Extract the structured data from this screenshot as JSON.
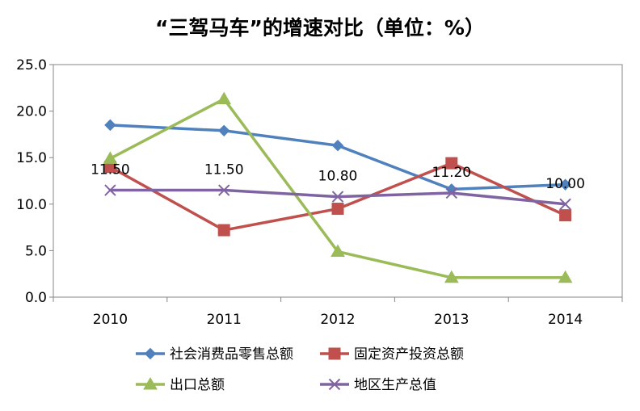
{
  "chart_data": {
    "type": "line",
    "title": "“三驾马车”的增速对比（单位：%）",
    "categories": [
      "2010",
      "2011",
      "2012",
      "2013",
      "2014"
    ],
    "ylim": [
      0,
      25
    ],
    "yticks": [
      "0.0",
      "5.0",
      "10.0",
      "15.0",
      "20.0",
      "25.0"
    ],
    "grid": false,
    "legend_position": "bottom",
    "series": [
      {
        "name": "社会消费品零售总额",
        "values": [
          18.5,
          17.9,
          16.3,
          11.6,
          12.1
        ],
        "color": "#4F81BD",
        "marker": "diamond"
      },
      {
        "name": "固定资产投资总额",
        "values": [
          14.0,
          7.2,
          9.5,
          14.4,
          8.8
        ],
        "color": "#C0504D",
        "marker": "square"
      },
      {
        "name": "出口总额",
        "values": [
          14.9,
          21.3,
          4.9,
          2.1,
          2.1
        ],
        "color": "#9BBB59",
        "marker": "triangle"
      },
      {
        "name": "地区生产总值",
        "values": [
          11.5,
          11.5,
          10.8,
          11.2,
          10.0
        ],
        "color": "#8064A2",
        "marker": "x",
        "data_labels": [
          "11.50",
          "11.50",
          "10.80",
          "11.20",
          "10.00"
        ]
      }
    ]
  }
}
